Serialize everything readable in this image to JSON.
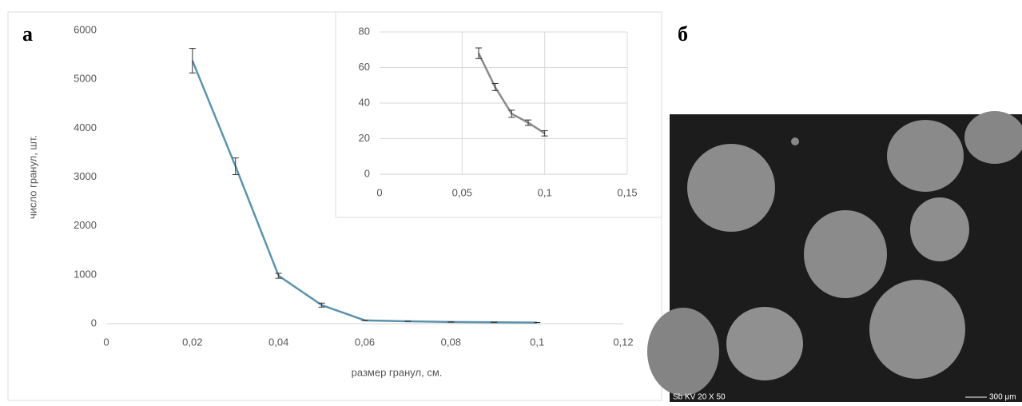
{
  "panel_labels": [
    "а",
    "б"
  ],
  "chart_data": [
    {
      "type": "line",
      "ylabel": "число гранул, шт.",
      "xlabel": "размер гранул, см.",
      "x": [
        0.02,
        0.03,
        0.04,
        0.05,
        0.06,
        0.07,
        0.08,
        0.09,
        0.1
      ],
      "series": [
        {
          "color": "#5b93ad",
          "values": [
            5380,
            3220,
            980,
            380,
            68,
            49,
            34,
            29,
            23
          ],
          "errors": [
            250,
            170,
            50,
            40,
            3,
            2,
            2,
            1.5,
            1.5
          ]
        }
      ],
      "xlim": [
        0,
        0.12
      ],
      "ylim": [
        0,
        6000
      ],
      "xticks": [
        0,
        {
          "value": 0.02,
          "label": "0,02"
        },
        {
          "value": 0.04,
          "label": "0,04"
        },
        {
          "value": 0.06,
          "label": "0,06"
        },
        {
          "value": 0.08,
          "label": "0,08"
        },
        {
          "value": 0.1,
          "label": "0,1"
        },
        {
          "value": 0.12,
          "label": "0,12"
        }
      ],
      "yticks": [
        0,
        1000,
        2000,
        3000,
        4000,
        5000,
        6000
      ],
      "grid": false
    },
    {
      "type": "line",
      "x": [
        0.06,
        0.07,
        0.08,
        0.09,
        0.1
      ],
      "series": [
        {
          "color": "#8a8a8a",
          "values": [
            68,
            49,
            34,
            29,
            23
          ],
          "errors": [
            3,
            2,
            2,
            1.5,
            1.5
          ]
        }
      ],
      "xlim": [
        0,
        0.15
      ],
      "ylim": [
        0,
        80
      ],
      "xticks": [
        0,
        {
          "value": 0.05,
          "label": "0,05"
        },
        {
          "value": 0.1,
          "label": "0,1"
        },
        {
          "value": 0.15,
          "label": "0,15"
        }
      ],
      "yticks": [
        0,
        20,
        40,
        60,
        80
      ],
      "grid": true
    }
  ],
  "image": {
    "caption": "Sb KV 20  X 50",
    "scale_bar": "300 μm"
  }
}
